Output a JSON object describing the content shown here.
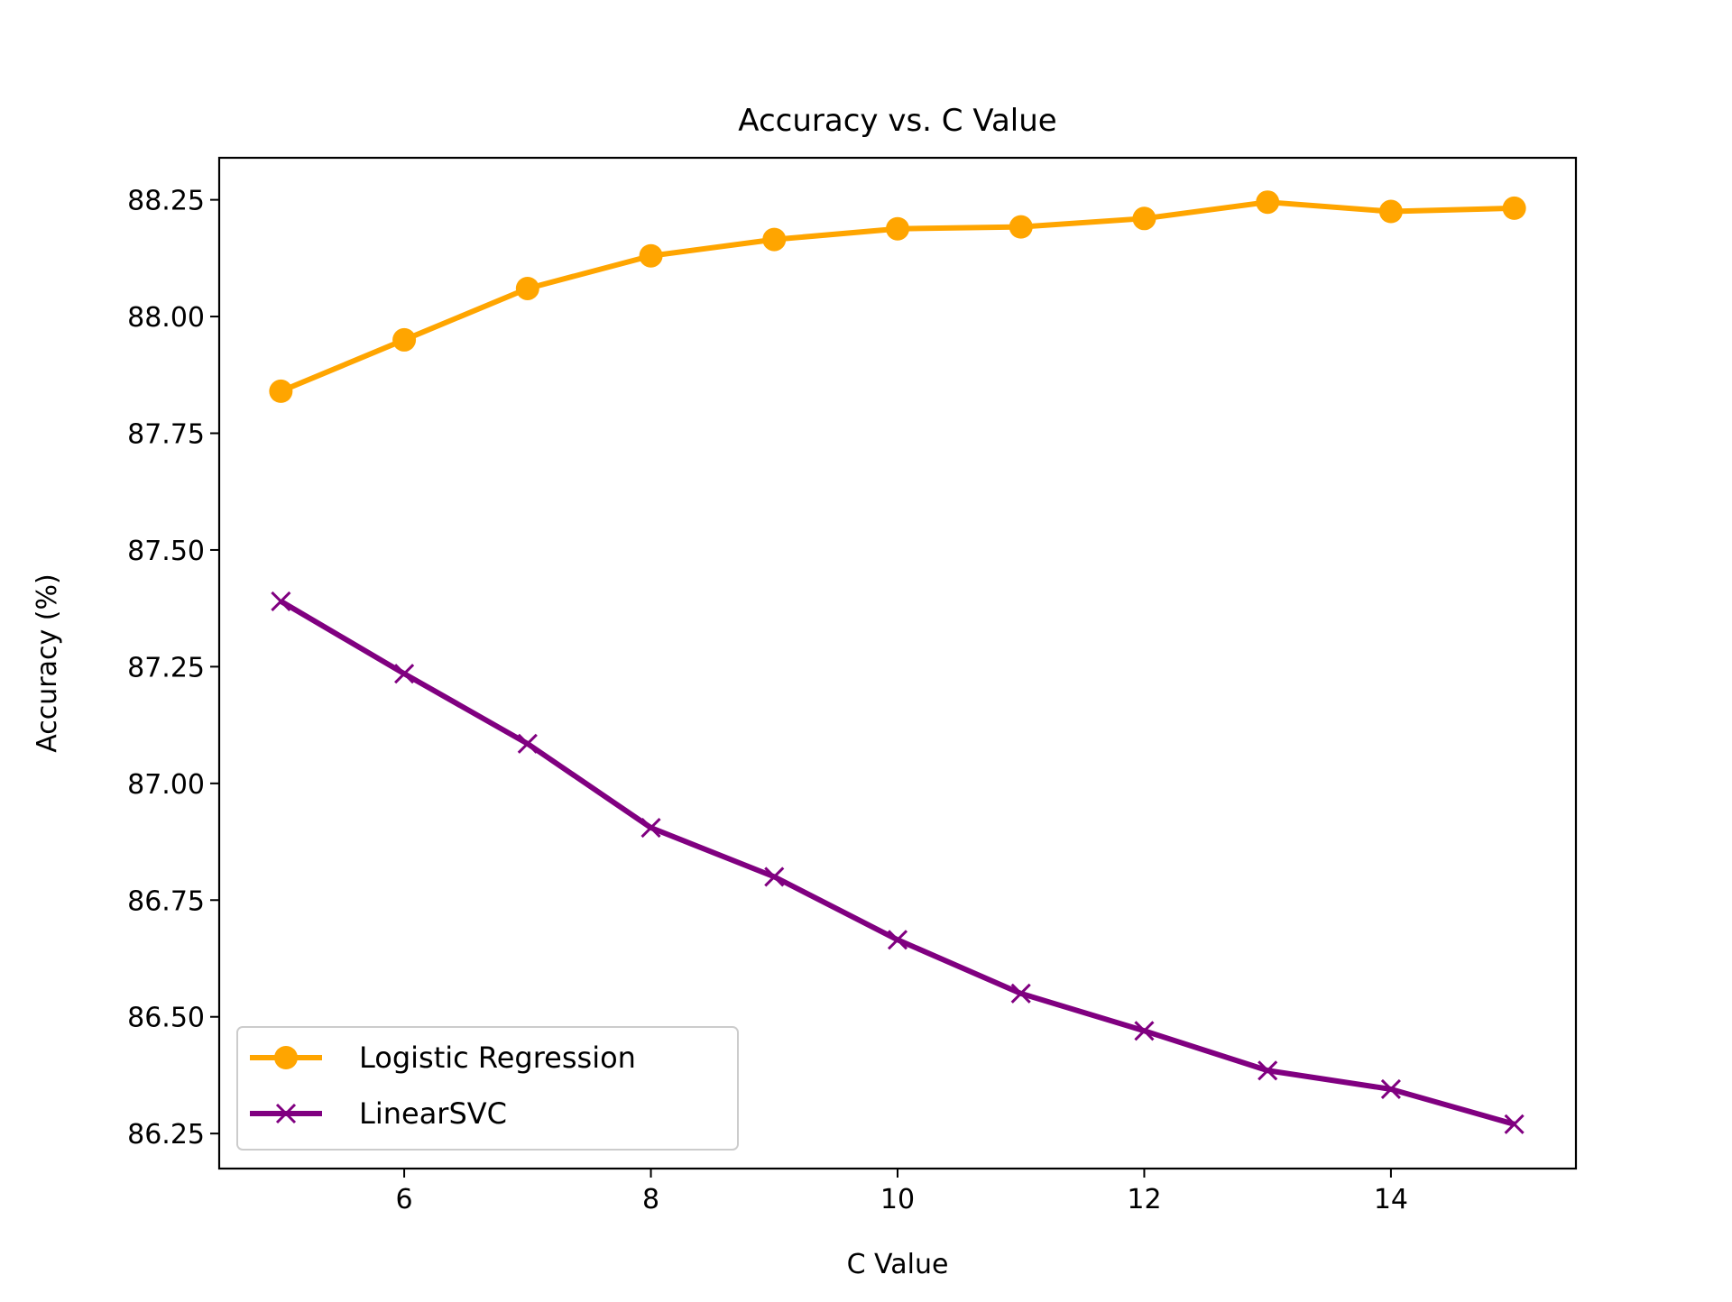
{
  "chart_data": {
    "type": "line",
    "title": "Accuracy vs. C Value",
    "xlabel": "C Value",
    "ylabel": "Accuracy (%)",
    "x": [
      5,
      6,
      7,
      8,
      9,
      10,
      11,
      12,
      13,
      14,
      15
    ],
    "xlim": [
      4.5,
      15.5
    ],
    "ylim": [
      86.175,
      88.34
    ],
    "xticks": [
      6,
      8,
      10,
      12,
      14
    ],
    "yticks": [
      86.25,
      86.5,
      86.75,
      87.0,
      87.25,
      87.5,
      87.75,
      88.0,
      88.25
    ],
    "xtick_labels": [
      "6",
      "8",
      "10",
      "12",
      "14"
    ],
    "ytick_labels": [
      "86.25",
      "86.50",
      "86.75",
      "87.00",
      "87.25",
      "87.50",
      "87.75",
      "88.00",
      "88.25"
    ],
    "grid": false,
    "legend_position": "lower-left",
    "series": [
      {
        "name": "Logistic Regression",
        "color": "#FFA500",
        "marker": "circle",
        "values": [
          87.84,
          87.95,
          88.06,
          88.13,
          88.165,
          88.188,
          88.192,
          88.21,
          88.245,
          88.225,
          88.232
        ]
      },
      {
        "name": "LinearSVC",
        "color": "#800080",
        "marker": "x",
        "values": [
          87.39,
          87.235,
          87.085,
          86.905,
          86.8,
          86.665,
          86.55,
          86.47,
          86.385,
          86.345,
          86.27
        ]
      }
    ]
  }
}
